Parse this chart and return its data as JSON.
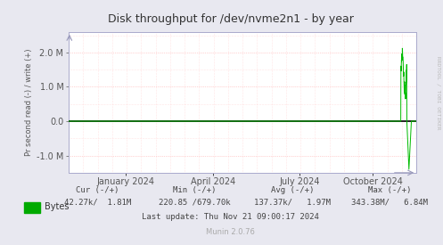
{
  "title": "Disk throughput for /dev/nvme2n1 - by year",
  "ylabel": "Pr second read (-) / write (+)",
  "xlabel_ticks": [
    "January 2024",
    "April 2024",
    "July 2024",
    "October 2024"
  ],
  "xlabel_tick_positions": [
    0.165,
    0.415,
    0.665,
    0.875
  ],
  "ylim": [
    -1500000,
    2600000
  ],
  "yticks": [
    -1000000,
    0.0,
    1000000,
    2000000
  ],
  "bg_color": "#e8e8f0",
  "plot_bg_color": "#ffffff",
  "grid_color": "#ffaaaa",
  "grid_color_light": "#ffcccc",
  "line_color": "#00bb00",
  "zero_line_color": "#000000",
  "legend_label": "Bytes",
  "legend_color": "#00aa00",
  "footer_line3": "Last update: Thu Nov 21 09:00:17 2024",
  "munin_version": "Munin 2.0.76",
  "watermark": "RRDTOOL / TOBI OETIKER"
}
